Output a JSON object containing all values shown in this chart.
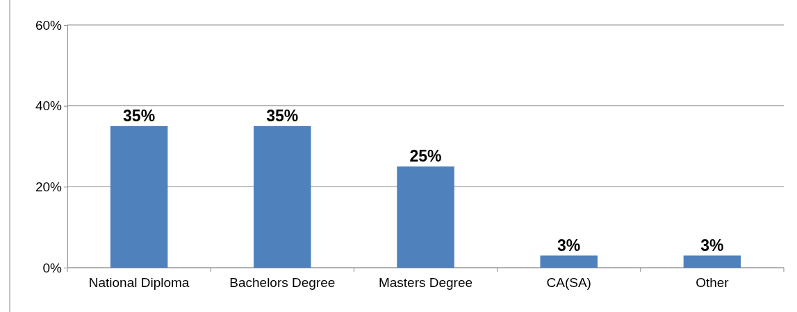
{
  "chart_data": {
    "type": "bar",
    "categories": [
      "National Diploma",
      "Bachelors Degree",
      "Masters Degree",
      "CA(SA)",
      "Other"
    ],
    "values": [
      35,
      35,
      25,
      3,
      3
    ],
    "value_labels": [
      "35%",
      "35%",
      "25%",
      "3%",
      "3%"
    ],
    "color": "#4f81bd",
    "ylim": [
      0,
      60
    ],
    "yticks": [
      {
        "value": 0,
        "label": "0%"
      },
      {
        "value": 20,
        "label": "20%"
      },
      {
        "value": 40,
        "label": "40%"
      },
      {
        "value": 60,
        "label": "60%"
      }
    ],
    "grid": "y"
  }
}
